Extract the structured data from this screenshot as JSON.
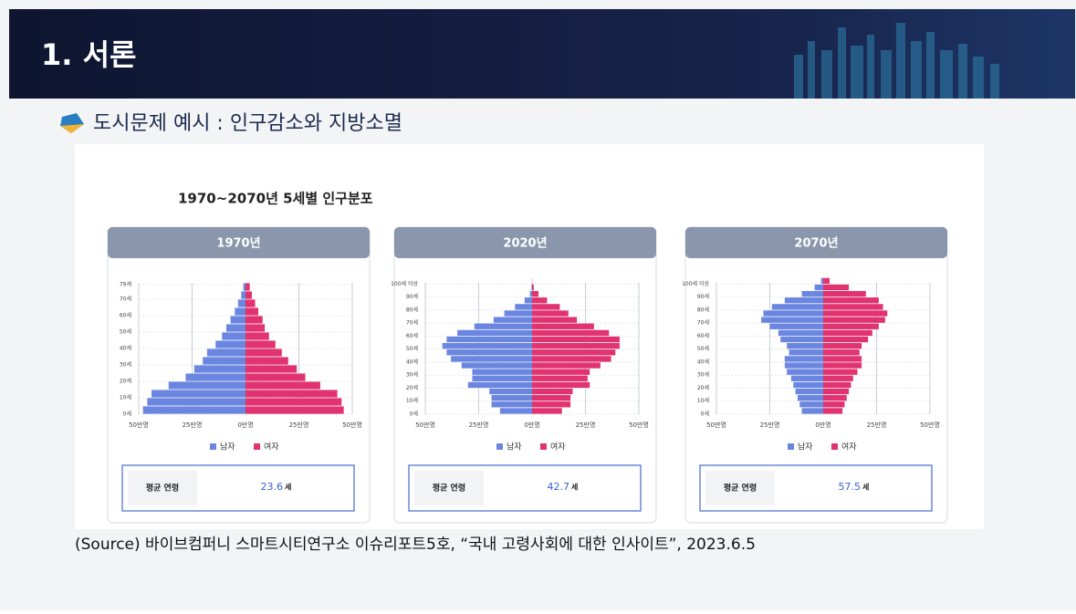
{
  "header": {
    "title": "1. 서론"
  },
  "subtitle": "도시문제 예시 : 인구감소와 지방소멸",
  "figure_title": "1970~2070년 5세별 인구분포",
  "chart_data": [
    {
      "type": "bar",
      "title": "1970년",
      "y": [
        0,
        5,
        10,
        15,
        20,
        25,
        30,
        35,
        40,
        45,
        50,
        55,
        60,
        65,
        70,
        75
      ],
      "series": [
        {
          "name": "남자",
          "color": "#6a86e0",
          "values": [
            48,
            46,
            44,
            36,
            28,
            24,
            20,
            18,
            14,
            11,
            9,
            7,
            5,
            3.5,
            2,
            1
          ]
        },
        {
          "name": "여자",
          "color": "#e0336f",
          "values": [
            46,
            45,
            43,
            35,
            28,
            24,
            20,
            17,
            14,
            11,
            9,
            8,
            6,
            4.5,
            3,
            2
          ]
        }
      ],
      "xlim": [
        -50,
        50
      ],
      "xticks": [
        {
          "value": -50,
          "label": "50만명"
        },
        {
          "value": -25,
          "label": "25만명"
        },
        {
          "value": 0,
          "label": "0만명"
        },
        {
          "value": 25,
          "label": "25만명"
        },
        {
          "value": 50,
          "label": "50만명"
        }
      ],
      "ylim": [
        0,
        80
      ],
      "yticks": [
        {
          "value": 0,
          "label": "0세"
        },
        {
          "value": 10,
          "label": "10세"
        },
        {
          "value": 20,
          "label": "20세"
        },
        {
          "value": 30,
          "label": "30세"
        },
        {
          "value": 40,
          "label": "40세"
        },
        {
          "value": 50,
          "label": "50세"
        },
        {
          "value": 60,
          "label": "60세"
        },
        {
          "value": 70,
          "label": "70세"
        },
        {
          "value": 79,
          "label": "79세"
        }
      ],
      "avg_label": "평균 연령",
      "avg_value": 23.6,
      "avg_unit": "세"
    },
    {
      "type": "bar",
      "title": "2020년",
      "y": [
        0,
        5,
        10,
        15,
        20,
        25,
        30,
        35,
        40,
        45,
        50,
        55,
        60,
        65,
        70,
        75,
        80,
        85,
        90,
        95,
        100
      ],
      "series": [
        {
          "name": "남자",
          "color": "#6a86e0",
          "values": [
            15,
            19,
            19,
            20,
            30,
            28,
            28,
            33,
            38,
            40,
            42,
            40,
            35,
            27,
            18,
            13,
            8,
            3.5,
            1,
            0.3,
            0.05
          ]
        },
        {
          "name": "여자",
          "color": "#e0336f",
          "values": [
            14,
            18,
            18,
            19,
            27,
            26,
            27,
            32,
            37,
            39,
            41,
            41,
            36,
            29,
            21,
            17,
            13,
            7,
            3,
            0.8,
            0.1
          ]
        }
      ],
      "xlim": [
        -50,
        50
      ],
      "xticks": [
        {
          "value": -50,
          "label": "50만명"
        },
        {
          "value": -25,
          "label": "25만명"
        },
        {
          "value": 0,
          "label": "0만명"
        },
        {
          "value": 25,
          "label": "25만명"
        },
        {
          "value": 50,
          "label": "50만명"
        }
      ],
      "ylim": [
        0,
        101
      ],
      "yticks": [
        {
          "value": 0,
          "label": "0세"
        },
        {
          "value": 10,
          "label": "10세"
        },
        {
          "value": 20,
          "label": "20세"
        },
        {
          "value": 30,
          "label": "30세"
        },
        {
          "value": 40,
          "label": "40세"
        },
        {
          "value": 50,
          "label": "50세"
        },
        {
          "value": 60,
          "label": "60세"
        },
        {
          "value": 70,
          "label": "70세"
        },
        {
          "value": 80,
          "label": "80세"
        },
        {
          "value": 90,
          "label": "90세"
        },
        {
          "value": 100,
          "label": "100세 이상"
        }
      ],
      "avg_label": "평균 연령",
      "avg_value": 42.7,
      "avg_unit": "세"
    },
    {
      "type": "bar",
      "title": "2070년",
      "y": [
        0,
        5,
        10,
        15,
        20,
        25,
        30,
        35,
        40,
        45,
        50,
        55,
        60,
        65,
        70,
        75,
        80,
        85,
        90,
        95,
        100
      ],
      "series": [
        {
          "name": "남자",
          "color": "#6a86e0",
          "values": [
            10,
            11,
            12,
            13,
            14,
            15,
            17,
            18,
            18,
            16,
            17,
            20,
            21,
            25,
            29,
            28,
            24,
            18,
            10,
            4,
            1
          ]
        },
        {
          "name": "여자",
          "color": "#e0336f",
          "values": [
            9,
            10,
            11,
            12,
            13,
            14,
            16,
            18,
            18,
            17,
            18,
            21,
            23,
            26,
            29,
            30,
            28,
            26,
            20,
            12,
            3
          ]
        }
      ],
      "xlim": [
        -50,
        50
      ],
      "xticks": [
        {
          "value": -50,
          "label": "50만명"
        },
        {
          "value": -25,
          "label": "25만명"
        },
        {
          "value": 0,
          "label": "0만명"
        },
        {
          "value": 25,
          "label": "25만명"
        },
        {
          "value": 50,
          "label": "50만명"
        }
      ],
      "ylim": [
        0,
        101
      ],
      "yticks": [
        {
          "value": 0,
          "label": "0세"
        },
        {
          "value": 10,
          "label": "10세"
        },
        {
          "value": 20,
          "label": "20세"
        },
        {
          "value": 30,
          "label": "30세"
        },
        {
          "value": 40,
          "label": "40세"
        },
        {
          "value": 50,
          "label": "50세"
        },
        {
          "value": 60,
          "label": "60세"
        },
        {
          "value": 70,
          "label": "70세"
        },
        {
          "value": 80,
          "label": "80세"
        },
        {
          "value": 90,
          "label": "90세"
        },
        {
          "value": 100,
          "label": "100세 이상"
        }
      ],
      "avg_label": "평균 연령",
      "avg_value": 57.5,
      "avg_unit": "세"
    }
  ],
  "source": "(Source) 바이브컴퍼니 스마트시티연구소 이슈리포트5호, “국내 고령사회에 대한 인사이트”, 2023.6.5"
}
